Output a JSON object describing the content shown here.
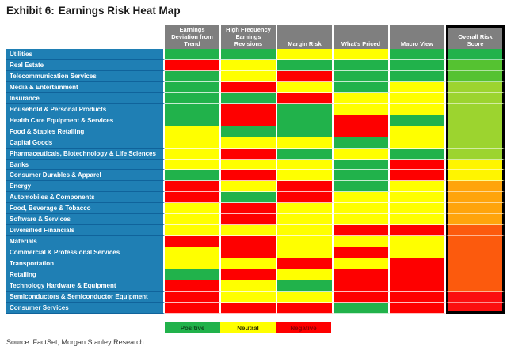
{
  "title": {
    "prefix": "Exhibit 6:",
    "text": "Earnings Risk Heat Map"
  },
  "source": "Source: FactSet, Morgan Stanley Research.",
  "colors": {
    "positive": "#21B24B",
    "neutral": "#FFFF00",
    "negative": "#FE0000",
    "sector_label_bg": "#1F7FB4",
    "sector_label_divider": "#10639B",
    "header_bg": "#7F7F7F",
    "overall_border": "#000000",
    "overall_tiers": {
      "green-1": "#21B24B",
      "green-2": "#55C231",
      "green-3": "#9CD42F",
      "yellow": "#FFF500",
      "orange": "#FFA40B",
      "orange-red": "#FC5A0D",
      "red": "#FB0F0F"
    }
  },
  "legend": {
    "items": [
      {
        "label": "Positive",
        "color": "#21B24B",
        "text_color": "#0D4A1F"
      },
      {
        "label": "Neutral",
        "color": "#FFFF00",
        "text_color": "#333300"
      },
      {
        "label": "Negative",
        "color": "#FE0000",
        "text_color": "#8B0000"
      }
    ]
  },
  "chart_data": {
    "type": "heatmap",
    "title": "Exhibit 6: Earnings Risk Heat Map",
    "columns": [
      "Earnings Deviation from Trend",
      "High Frequency Earnings Revisions",
      "Margin Risk",
      "What's Priced",
      "Macro View",
      "Overall Risk Score"
    ],
    "value_scale": [
      "positive",
      "neutral",
      "negative"
    ],
    "rows": [
      {
        "sector": "Utilities",
        "ratings": [
          "positive",
          "positive",
          "neutral",
          "neutral",
          "positive"
        ],
        "overall": "green-1"
      },
      {
        "sector": "Real Estate",
        "ratings": [
          "negative",
          "neutral",
          "positive",
          "positive",
          "positive"
        ],
        "overall": "green-2"
      },
      {
        "sector": "Telecommunication Services",
        "ratings": [
          "positive",
          "neutral",
          "negative",
          "positive",
          "positive"
        ],
        "overall": "green-2"
      },
      {
        "sector": "Media & Entertainment",
        "ratings": [
          "positive",
          "negative",
          "neutral",
          "positive",
          "neutral"
        ],
        "overall": "green-3"
      },
      {
        "sector": "Insurance",
        "ratings": [
          "positive",
          "positive",
          "negative",
          "neutral",
          "neutral"
        ],
        "overall": "green-3"
      },
      {
        "sector": "Household & Personal Products",
        "ratings": [
          "positive",
          "negative",
          "positive",
          "neutral",
          "neutral"
        ],
        "overall": "green-3"
      },
      {
        "sector": "Health Care Equipment & Services",
        "ratings": [
          "positive",
          "negative",
          "positive",
          "negative",
          "positive"
        ],
        "overall": "green-3"
      },
      {
        "sector": "Food & Staples Retailing",
        "ratings": [
          "neutral",
          "positive",
          "positive",
          "negative",
          "neutral"
        ],
        "overall": "green-3"
      },
      {
        "sector": "Capital Goods",
        "ratings": [
          "neutral",
          "neutral",
          "neutral",
          "positive",
          "neutral"
        ],
        "overall": "green-3"
      },
      {
        "sector": "Pharmaceuticals, Biotechnology & Life Sciences",
        "ratings": [
          "neutral",
          "negative",
          "positive",
          "neutral",
          "positive"
        ],
        "overall": "green-3"
      },
      {
        "sector": "Banks",
        "ratings": [
          "neutral",
          "neutral",
          "neutral",
          "positive",
          "negative"
        ],
        "overall": "yellow"
      },
      {
        "sector": "Consumer Durables & Apparel",
        "ratings": [
          "positive",
          "negative",
          "neutral",
          "positive",
          "negative"
        ],
        "overall": "yellow"
      },
      {
        "sector": "Energy",
        "ratings": [
          "negative",
          "neutral",
          "negative",
          "positive",
          "neutral"
        ],
        "overall": "orange"
      },
      {
        "sector": "Automobiles & Components",
        "ratings": [
          "negative",
          "positive",
          "negative",
          "neutral",
          "neutral"
        ],
        "overall": "orange"
      },
      {
        "sector": "Food, Beverage & Tobacco",
        "ratings": [
          "neutral",
          "negative",
          "neutral",
          "neutral",
          "neutral"
        ],
        "overall": "orange"
      },
      {
        "sector": "Software & Services",
        "ratings": [
          "neutral",
          "negative",
          "neutral",
          "neutral",
          "neutral"
        ],
        "overall": "orange"
      },
      {
        "sector": "Diversified Financials",
        "ratings": [
          "neutral",
          "neutral",
          "neutral",
          "negative",
          "negative"
        ],
        "overall": "orange-red"
      },
      {
        "sector": "Materials",
        "ratings": [
          "negative",
          "negative",
          "neutral",
          "neutral",
          "neutral"
        ],
        "overall": "orange-red"
      },
      {
        "sector": "Commercial  & Professional Services",
        "ratings": [
          "neutral",
          "negative",
          "neutral",
          "negative",
          "neutral"
        ],
        "overall": "orange-red"
      },
      {
        "sector": "Transportation",
        "ratings": [
          "neutral",
          "neutral",
          "negative",
          "neutral",
          "negative"
        ],
        "overall": "orange-red"
      },
      {
        "sector": "Retailing",
        "ratings": [
          "positive",
          "negative",
          "neutral",
          "negative",
          "negative"
        ],
        "overall": "orange-red"
      },
      {
        "sector": "Technology Hardware & Equipment",
        "ratings": [
          "negative",
          "neutral",
          "positive",
          "negative",
          "negative"
        ],
        "overall": "orange-red"
      },
      {
        "sector": "Semiconductors & Semiconductor Equipment",
        "ratings": [
          "negative",
          "neutral",
          "neutral",
          "negative",
          "negative"
        ],
        "overall": "red"
      },
      {
        "sector": "Consumer Services",
        "ratings": [
          "negative",
          "negative",
          "negative",
          "positive",
          "negative"
        ],
        "overall": "red"
      }
    ],
    "legend": [
      "Positive",
      "Neutral",
      "Negative"
    ]
  }
}
